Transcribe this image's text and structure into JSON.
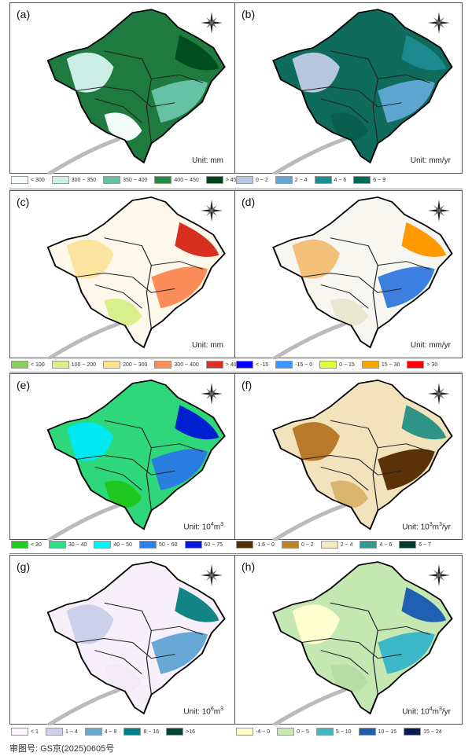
{
  "panels": [
    {
      "label": "(a)",
      "unit_base": "Unit: mm",
      "unit_html": "",
      "base": "#1f7a3f",
      "blobs": [
        "#cbeee6",
        "#66c2a4",
        "#004d20",
        "#f2fbf9"
      ]
    },
    {
      "label": "(b)",
      "unit_base": "Unit: mm/yr",
      "unit_html": "",
      "base": "#0f6b5c",
      "blobs": [
        "#b7c7e0",
        "#5ea6d2",
        "#1a8a8f",
        "#0a5e50"
      ]
    },
    {
      "label": "(c)",
      "unit_base": "Unit: mm",
      "unit_html": "",
      "base": "#fdf8ea",
      "blobs": [
        "#fde3a0",
        "#fc8d59",
        "#d7301f",
        "#d9ef8b"
      ]
    },
    {
      "label": "(d)",
      "unit_base": "Unit: mm/yr",
      "unit_html": "",
      "base": "#f7f6f0",
      "blobs": [
        "#f2c079",
        "#3d7fe0",
        "#ff9900",
        "#e8e8d0"
      ]
    },
    {
      "label": "(e)",
      "unit_base": "Unit: 10",
      "unit_sup1": "4",
      "unit_mid": "m",
      "unit_sup2": "3",
      "unit_tail": "",
      "base": "#2ed87a",
      "blobs": [
        "#00e8f0",
        "#2a7de0",
        "#0020d0",
        "#1fc81f"
      ]
    },
    {
      "label": "(f)",
      "unit_base": "Unit: 10",
      "unit_sup1": "3",
      "unit_mid": "m",
      "unit_sup2": "3",
      "unit_tail": "/yr",
      "base": "#f3e3bd",
      "blobs": [
        "#b87a2a",
        "#5a3208",
        "#2f9385",
        "#d9b56e"
      ]
    },
    {
      "label": "(g)",
      "unit_base": "Unit: 10",
      "unit_sup1": "6",
      "unit_mid": "m",
      "unit_sup2": "3",
      "unit_tail": "",
      "base": "#f7f0fa",
      "blobs": [
        "#cdd0ea",
        "#68a8d4",
        "#138486",
        "#f2ebf6"
      ]
    },
    {
      "label": "(h)",
      "unit_base": "Unit: 10",
      "unit_sup1": "4",
      "unit_mid": "m",
      "unit_sup2": "3",
      "unit_tail": "/yr",
      "base": "#c5e8b3",
      "blobs": [
        "#ffffd0",
        "#3cb8c8",
        "#2060b0",
        "#b6dea4"
      ]
    }
  ],
  "legends": [
    {
      "items": [
        {
          "color": "#f5fcfb",
          "label": "< 300"
        },
        {
          "color": "#cbeee6",
          "label": "300 ~ 350"
        },
        {
          "color": "#62c1a0",
          "label": "350 ~ 400"
        },
        {
          "color": "#228b45",
          "label": "400 ~ 450"
        },
        {
          "color": "#00441b",
          "label": "> 450"
        }
      ]
    },
    {
      "items": [
        {
          "color": "#b7c7e0",
          "label": "0 ~ 2"
        },
        {
          "color": "#62a6d6",
          "label": "2 ~ 4"
        },
        {
          "color": "#1d8f94",
          "label": "4 ~ 6"
        },
        {
          "color": "#006b55",
          "label": "6 ~ 9"
        }
      ]
    },
    {
      "items": [
        {
          "color": "#8ccd5f",
          "label": "< 100"
        },
        {
          "color": "#d9ef8b",
          "label": "100 ~ 200"
        },
        {
          "color": "#fee090",
          "label": "200 ~ 300"
        },
        {
          "color": "#fc8d59",
          "label": "300 ~ 400"
        },
        {
          "color": "#d73027",
          "label": "> 400"
        }
      ]
    },
    {
      "items": [
        {
          "color": "#0000ff",
          "label": "< -15"
        },
        {
          "color": "#3399ff",
          "label": "-15 ~ 0"
        },
        {
          "color": "#e6ff3c",
          "label": "0 ~ 15"
        },
        {
          "color": "#ffa500",
          "label": "15 ~ 30"
        },
        {
          "color": "#ff0000",
          "label": "> 30"
        }
      ]
    },
    {
      "items": [
        {
          "color": "#1fcc1f",
          "label": "< 30"
        },
        {
          "color": "#2edd88",
          "label": "30 ~ 40"
        },
        {
          "color": "#00f5f5",
          "label": "40 ~ 50"
        },
        {
          "color": "#2b80ec",
          "label": "50 ~ 60"
        },
        {
          "color": "#0018e0",
          "label": "60 ~ 75"
        }
      ]
    },
    {
      "items": [
        {
          "color": "#543005",
          "label": "-1.6 ~ 0"
        },
        {
          "color": "#bf812d",
          "label": "0 ~ 2"
        },
        {
          "color": "#f6e8c3",
          "label": "2 ~ 4"
        },
        {
          "color": "#35978f",
          "label": "4 ~ 6"
        },
        {
          "color": "#003c30",
          "label": "6 ~ 7"
        }
      ]
    },
    {
      "items": [
        {
          "color": "#fcf5fc",
          "label": "< 1"
        },
        {
          "color": "#cdd0ea",
          "label": "1 ~ 4"
        },
        {
          "color": "#67a9cf",
          "label": "4 ~ 8"
        },
        {
          "color": "#02818a",
          "label": "8 ~ 16"
        },
        {
          "color": "#014636",
          "label": ">16"
        }
      ]
    },
    {
      "items": [
        {
          "color": "#ffffcc",
          "label": "-4 ~ 0"
        },
        {
          "color": "#c7e9b4",
          "label": "0 ~ 5"
        },
        {
          "color": "#41b6c4",
          "label": "5 ~ 10"
        },
        {
          "color": "#225ea8",
          "label": "10 ~ 15"
        },
        {
          "color": "#081d58",
          "label": "15 ~ 24"
        }
      ]
    }
  ],
  "footer": "审图号: GS京(2025)0605号"
}
